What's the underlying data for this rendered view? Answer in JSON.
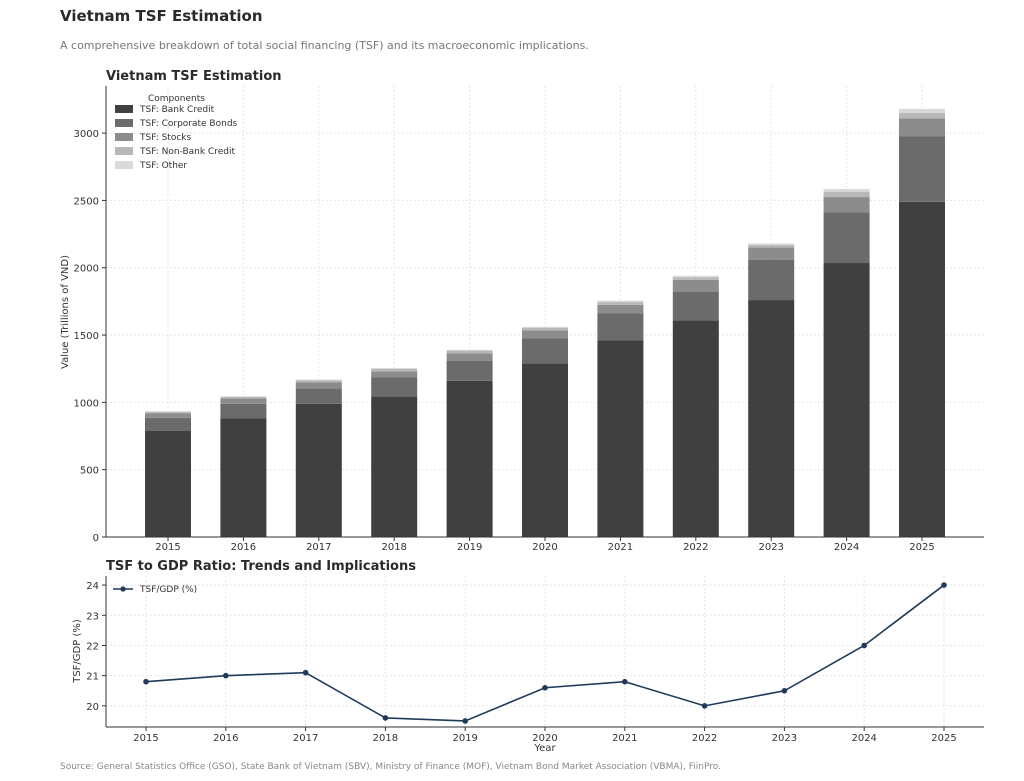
{
  "page": {
    "title": "Vietnam TSF Estimation",
    "subtitle": "A comprehensive breakdown of total social financing (TSF) and its macroeconomic implications.",
    "source": "Source: General Statistics Office (GSO), State Bank of Vietnam (SBV), Ministry of Finance (MOF), Vietnam Bond Market Association (VBMA), FiinPro."
  },
  "chart_data": [
    {
      "type": "bar",
      "stacked": true,
      "title": "Vietnam TSF Estimation",
      "xlabel": "",
      "ylabel": "Value (Trillions of VND)",
      "legend_title": "Components",
      "legend_position": "top-left",
      "grid": true,
      "ylim": [
        0,
        3350
      ],
      "yticks": [
        0,
        500,
        1000,
        1500,
        2000,
        2500,
        3000
      ],
      "categories": [
        "2015",
        "2016",
        "2017",
        "2018",
        "2019",
        "2020",
        "2021",
        "2022",
        "2023",
        "2024",
        "2025"
      ],
      "series": [
        {
          "name": "TSF: Bank Credit",
          "color": "#404040",
          "values": [
            790,
            880,
            990,
            1045,
            1160,
            1290,
            1460,
            1610,
            1760,
            2035,
            2490
          ]
        },
        {
          "name": "TSF: Corporate Bonds",
          "color": "#6b6b6b",
          "values": [
            95,
            110,
            115,
            140,
            150,
            185,
            200,
            210,
            300,
            375,
            485
          ]
        },
        {
          "name": "TSF: Stocks",
          "color": "#8c8c8c",
          "values": [
            35,
            40,
            45,
            45,
            55,
            60,
            65,
            90,
            90,
            115,
            135
          ]
        },
        {
          "name": "TSF: Non-Bank Credit",
          "color": "#b8b8b8",
          "values": [
            10,
            10,
            15,
            20,
            20,
            20,
            20,
            20,
            20,
            40,
            40
          ]
        },
        {
          "name": "TSF: Other",
          "color": "#d9d9d9",
          "values": [
            5,
            5,
            5,
            5,
            5,
            5,
            10,
            10,
            10,
            20,
            30
          ]
        }
      ]
    },
    {
      "type": "line",
      "title": "TSF to GDP Ratio: Trends and Implications",
      "xlabel": "Year",
      "ylabel": "TSF/GDP (%)",
      "legend_position": "top-left",
      "grid": true,
      "ylim": [
        19.3,
        24.3
      ],
      "yticks": [
        20,
        21,
        22,
        23,
        24
      ],
      "x": [
        "2015",
        "2016",
        "2017",
        "2018",
        "2019",
        "2020",
        "2021",
        "2022",
        "2023",
        "2024",
        "2025"
      ],
      "series": [
        {
          "name": "TSF/GDP (%)",
          "color": "#1f3a5a",
          "values": [
            20.8,
            21.0,
            21.1,
            19.6,
            19.5,
            20.6,
            20.8,
            20.0,
            20.5,
            22.0,
            24.0
          ]
        }
      ]
    }
  ]
}
